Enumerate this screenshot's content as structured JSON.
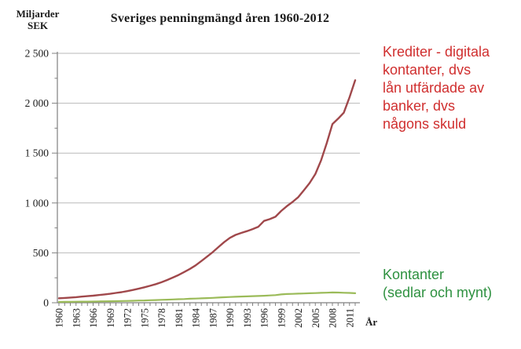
{
  "chart_data": {
    "type": "line",
    "title": "Sveriges penningmängd åren 1960-2012",
    "unit_label": "Miljarder\nSEK",
    "xlabel": "År",
    "ylabel": "Miljarder SEK",
    "ylim": [
      0,
      2500
    ],
    "x_range": [
      1960,
      2012
    ],
    "grid": "horizontal",
    "legend_position": "none",
    "ytick_values": [
      0,
      500,
      1000,
      1500,
      2000,
      2500
    ],
    "ytick_labels": [
      "0",
      "500",
      "1 000",
      "1 500",
      "2 000",
      "2 500"
    ],
    "ytick_minor_step": 250,
    "xtick_labeled_years": [
      1960,
      1963,
      1966,
      1969,
      1972,
      1975,
      1978,
      1981,
      1984,
      1987,
      1990,
      1993,
      1996,
      1999,
      2002,
      2005,
      2008,
      2011
    ],
    "xtick_minor_step": 1,
    "series": [
      {
        "name": "Krediter (digitala kontanter)",
        "color": "#a0484b",
        "stroke_width": 2.4,
        "start_year": 1960,
        "values": [
          45,
          48,
          52,
          56,
          61,
          66,
          71,
          77,
          83,
          90,
          98,
          106,
          116,
          128,
          141,
          155,
          170,
          186,
          205,
          228,
          252,
          278,
          308,
          340,
          375,
          418,
          462,
          508,
          558,
          608,
          650,
          680,
          700,
          718,
          738,
          762,
          820,
          838,
          862,
          920,
          968,
          1010,
          1058,
          1128,
          1200,
          1290,
          1425,
          1600,
          1790,
          1845,
          1905,
          2060,
          2230
        ]
      },
      {
        "name": "Kontanter (sedlar och mynt)",
        "color": "#9bbb59",
        "stroke_width": 2.2,
        "start_year": 1960,
        "values": [
          8,
          9,
          9,
          10,
          11,
          11,
          12,
          13,
          14,
          15,
          16,
          17,
          18,
          20,
          22,
          23,
          25,
          27,
          29,
          31,
          33,
          35,
          37,
          40,
          42,
          44,
          46,
          49,
          52,
          55,
          57,
          60,
          62,
          64,
          66,
          68,
          70,
          73,
          76,
          83,
          87,
          89,
          91,
          93,
          95,
          97,
          99,
          101,
          103,
          102,
          100,
          98,
          95
        ]
      }
    ]
  },
  "annotations": {
    "krediter": {
      "text": "Krediter - digitala\nkontanter, dvs\nlån utfärdade av\nbanker, dvs\nnågons skuld",
      "color": "#d02f2f"
    },
    "kontanter": {
      "text": "Kontanter\n(sedlar och mynt)",
      "color": "#2e9140"
    }
  },
  "axis_colors": {
    "gridline": "#b9b9b9",
    "axis_line": "#808080",
    "tick": "#808080",
    "tick_label": "#1a1a1a"
  }
}
